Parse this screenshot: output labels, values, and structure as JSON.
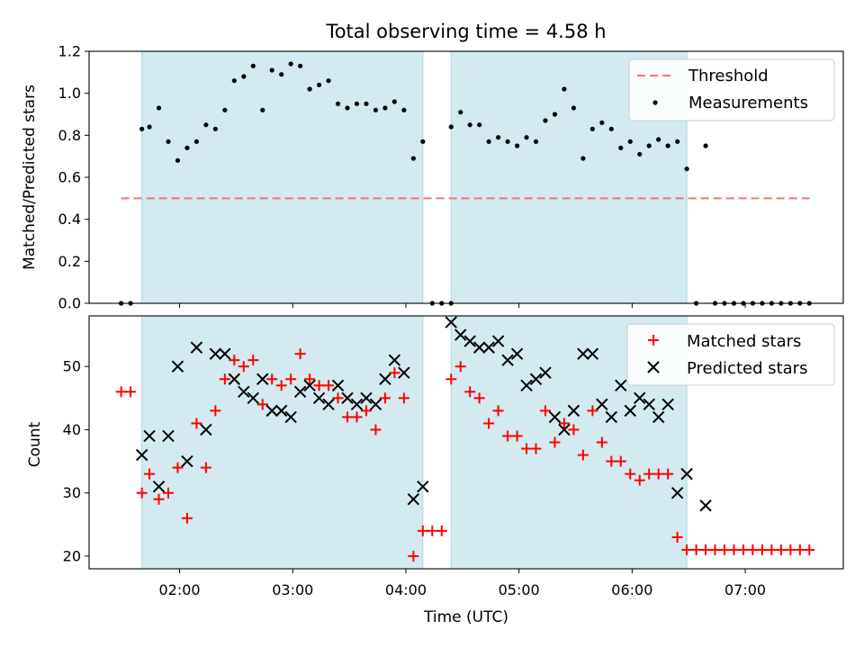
{
  "chart_data": [
    {
      "type": "scatter",
      "title": "Total observing time = 4.58 h",
      "xlabel": "",
      "ylabel": "Matched/Predicted stars",
      "xlim": [
        "01:12",
        "07:52"
      ],
      "ylim": [
        0,
        1.2
      ],
      "yticks": [
        "0.0",
        "0.2",
        "0.4",
        "0.6",
        "0.8",
        "1.0",
        "1.2"
      ],
      "xticks": [
        "02:00",
        "03:00",
        "04:00",
        "05:00",
        "06:00",
        "07:00"
      ],
      "legend_position": "top-right",
      "shaded_intervals": [
        [
          "01:40",
          "04:09"
        ],
        [
          "04:24",
          "06:29"
        ]
      ],
      "shade_color": "#d3eaf0",
      "threshold": {
        "name": "Threshold",
        "y": 0.5,
        "x_range": [
          "01:29",
          "07:35"
        ],
        "color": "#f07474",
        "style": "dashed"
      },
      "series": [
        {
          "name": "Measurements",
          "color": "#000000",
          "marker": "dot",
          "points": [
            [
              "01:29",
              0.0
            ],
            [
              "01:34",
              0.0
            ],
            [
              "01:40",
              0.83
            ],
            [
              "01:44",
              0.84
            ],
            [
              "01:49",
              0.93
            ],
            [
              "01:54",
              0.77
            ],
            [
              "01:59",
              0.68
            ],
            [
              "02:04",
              0.74
            ],
            [
              "02:09",
              0.77
            ],
            [
              "02:14",
              0.85
            ],
            [
              "02:19",
              0.83
            ],
            [
              "02:24",
              0.92
            ],
            [
              "02:29",
              1.06
            ],
            [
              "02:34",
              1.08
            ],
            [
              "02:39",
              1.13
            ],
            [
              "02:44",
              0.92
            ],
            [
              "02:49",
              1.11
            ],
            [
              "02:54",
              1.09
            ],
            [
              "02:59",
              1.14
            ],
            [
              "03:04",
              1.13
            ],
            [
              "03:09",
              1.02
            ],
            [
              "03:14",
              1.04
            ],
            [
              "03:19",
              1.06
            ],
            [
              "03:24",
              0.95
            ],
            [
              "03:29",
              0.93
            ],
            [
              "03:34",
              0.95
            ],
            [
              "03:39",
              0.95
            ],
            [
              "03:44",
              0.92
            ],
            [
              "03:49",
              0.93
            ],
            [
              "03:54",
              0.96
            ],
            [
              "03:59",
              0.92
            ],
            [
              "04:04",
              0.69
            ],
            [
              "04:09",
              0.77
            ],
            [
              "04:14",
              0.0
            ],
            [
              "04:19",
              0.0
            ],
            [
              "04:24",
              0.0
            ],
            [
              "04:24",
              0.84
            ],
            [
              "04:29",
              0.91
            ],
            [
              "04:34",
              0.85
            ],
            [
              "04:39",
              0.85
            ],
            [
              "04:44",
              0.77
            ],
            [
              "04:49",
              0.79
            ],
            [
              "04:54",
              0.77
            ],
            [
              "04:59",
              0.75
            ],
            [
              "05:04",
              0.79
            ],
            [
              "05:09",
              0.77
            ],
            [
              "05:14",
              0.87
            ],
            [
              "05:19",
              0.9
            ],
            [
              "05:24",
              1.02
            ],
            [
              "05:29",
              0.93
            ],
            [
              "05:34",
              0.69
            ],
            [
              "05:39",
              0.83
            ],
            [
              "05:44",
              0.86
            ],
            [
              "05:49",
              0.83
            ],
            [
              "05:54",
              0.74
            ],
            [
              "05:59",
              0.77
            ],
            [
              "06:04",
              0.71
            ],
            [
              "06:09",
              0.75
            ],
            [
              "06:14",
              0.78
            ],
            [
              "06:19",
              0.75
            ],
            [
              "06:24",
              0.77
            ],
            [
              "06:29",
              0.64
            ],
            [
              "06:34",
              0.0
            ],
            [
              "06:39",
              0.75
            ],
            [
              "06:44",
              0.0
            ],
            [
              "06:49",
              0.0
            ],
            [
              "06:54",
              0.0
            ],
            [
              "06:59",
              0.0
            ],
            [
              "07:04",
              0.0
            ],
            [
              "07:09",
              0.0
            ],
            [
              "07:14",
              0.0
            ],
            [
              "07:19",
              0.0
            ],
            [
              "07:24",
              0.0
            ],
            [
              "07:29",
              0.0
            ],
            [
              "07:34",
              0.0
            ]
          ]
        }
      ]
    },
    {
      "type": "scatter",
      "title": "",
      "xlabel": "Time (UTC)",
      "ylabel": "Count",
      "xlim": [
        "01:12",
        "07:52"
      ],
      "ylim": [
        18,
        58
      ],
      "yticks": [
        "20",
        "30",
        "40",
        "50"
      ],
      "xticks": [
        "02:00",
        "03:00",
        "04:00",
        "05:00",
        "06:00",
        "07:00"
      ],
      "legend_position": "top-right",
      "shaded_intervals": [
        [
          "01:40",
          "04:09"
        ],
        [
          "04:24",
          "06:29"
        ]
      ],
      "shade_color": "#d3eaf0",
      "series": [
        {
          "name": "Matched stars",
          "color": "#ff0000",
          "marker": "plus",
          "points": [
            [
              "01:29",
              46
            ],
            [
              "01:34",
              46
            ],
            [
              "01:40",
              30
            ],
            [
              "01:44",
              33
            ],
            [
              "01:49",
              29
            ],
            [
              "01:54",
              30
            ],
            [
              "01:59",
              34
            ],
            [
              "02:04",
              26
            ],
            [
              "02:09",
              41
            ],
            [
              "02:14",
              34
            ],
            [
              "02:19",
              43
            ],
            [
              "02:24",
              48
            ],
            [
              "02:29",
              51
            ],
            [
              "02:34",
              50
            ],
            [
              "02:39",
              51
            ],
            [
              "02:44",
              44
            ],
            [
              "02:49",
              48
            ],
            [
              "02:54",
              47
            ],
            [
              "02:59",
              48
            ],
            [
              "03:04",
              52
            ],
            [
              "03:09",
              48
            ],
            [
              "03:14",
              47
            ],
            [
              "03:19",
              47
            ],
            [
              "03:24",
              45
            ],
            [
              "03:29",
              42
            ],
            [
              "03:34",
              42
            ],
            [
              "03:39",
              43
            ],
            [
              "03:44",
              40
            ],
            [
              "03:49",
              45
            ],
            [
              "03:54",
              49
            ],
            [
              "03:59",
              45
            ],
            [
              "04:04",
              20
            ],
            [
              "04:09",
              24
            ],
            [
              "04:14",
              24
            ],
            [
              "04:19",
              24
            ],
            [
              "04:24",
              48
            ],
            [
              "04:29",
              50
            ],
            [
              "04:34",
              46
            ],
            [
              "04:39",
              45
            ],
            [
              "04:44",
              41
            ],
            [
              "04:49",
              43
            ],
            [
              "04:54",
              39
            ],
            [
              "04:59",
              39
            ],
            [
              "05:04",
              37
            ],
            [
              "05:09",
              37
            ],
            [
              "05:14",
              43
            ],
            [
              "05:19",
              38
            ],
            [
              "05:24",
              41
            ],
            [
              "05:29",
              40
            ],
            [
              "05:34",
              36
            ],
            [
              "05:39",
              43
            ],
            [
              "05:44",
              38
            ],
            [
              "05:49",
              35
            ],
            [
              "05:54",
              35
            ],
            [
              "05:59",
              33
            ],
            [
              "06:04",
              32
            ],
            [
              "06:09",
              33
            ],
            [
              "06:14",
              33
            ],
            [
              "06:19",
              33
            ],
            [
              "06:24",
              23
            ],
            [
              "06:29",
              21
            ],
            [
              "06:34",
              21
            ],
            [
              "06:39",
              21
            ],
            [
              "06:44",
              21
            ],
            [
              "06:49",
              21
            ],
            [
              "06:54",
              21
            ],
            [
              "06:59",
              21
            ],
            [
              "07:04",
              21
            ],
            [
              "07:09",
              21
            ],
            [
              "07:14",
              21
            ],
            [
              "07:19",
              21
            ],
            [
              "07:24",
              21
            ],
            [
              "07:29",
              21
            ],
            [
              "07:34",
              21
            ]
          ]
        },
        {
          "name": "Predicted stars",
          "color": "#000000",
          "marker": "x",
          "points": [
            [
              "01:40",
              36
            ],
            [
              "01:44",
              39
            ],
            [
              "01:49",
              31
            ],
            [
              "01:54",
              39
            ],
            [
              "01:59",
              50
            ],
            [
              "02:04",
              35
            ],
            [
              "02:09",
              53
            ],
            [
              "02:14",
              40
            ],
            [
              "02:19",
              52
            ],
            [
              "02:24",
              52
            ],
            [
              "02:29",
              48
            ],
            [
              "02:34",
              46
            ],
            [
              "02:39",
              45
            ],
            [
              "02:44",
              48
            ],
            [
              "02:49",
              43
            ],
            [
              "02:54",
              43
            ],
            [
              "02:59",
              42
            ],
            [
              "03:04",
              46
            ],
            [
              "03:09",
              47
            ],
            [
              "03:14",
              45
            ],
            [
              "03:19",
              44
            ],
            [
              "03:24",
              47
            ],
            [
              "03:29",
              45
            ],
            [
              "03:34",
              44
            ],
            [
              "03:39",
              45
            ],
            [
              "03:44",
              44
            ],
            [
              "03:49",
              48
            ],
            [
              "03:54",
              51
            ],
            [
              "03:59",
              49
            ],
            [
              "04:04",
              29
            ],
            [
              "04:09",
              31
            ],
            [
              "04:24",
              57
            ],
            [
              "04:29",
              55
            ],
            [
              "04:34",
              54
            ],
            [
              "04:39",
              53
            ],
            [
              "04:44",
              53
            ],
            [
              "04:49",
              54
            ],
            [
              "04:54",
              51
            ],
            [
              "04:59",
              52
            ],
            [
              "05:04",
              47
            ],
            [
              "05:09",
              48
            ],
            [
              "05:14",
              49
            ],
            [
              "05:19",
              42
            ],
            [
              "05:24",
              40
            ],
            [
              "05:29",
              43
            ],
            [
              "05:34",
              52
            ],
            [
              "05:39",
              52
            ],
            [
              "05:44",
              44
            ],
            [
              "05:49",
              42
            ],
            [
              "05:54",
              47
            ],
            [
              "05:59",
              43
            ],
            [
              "06:04",
              45
            ],
            [
              "06:09",
              44
            ],
            [
              "06:14",
              42
            ],
            [
              "06:19",
              44
            ],
            [
              "06:24",
              30
            ],
            [
              "06:29",
              33
            ],
            [
              "06:39",
              28
            ]
          ]
        }
      ]
    }
  ]
}
